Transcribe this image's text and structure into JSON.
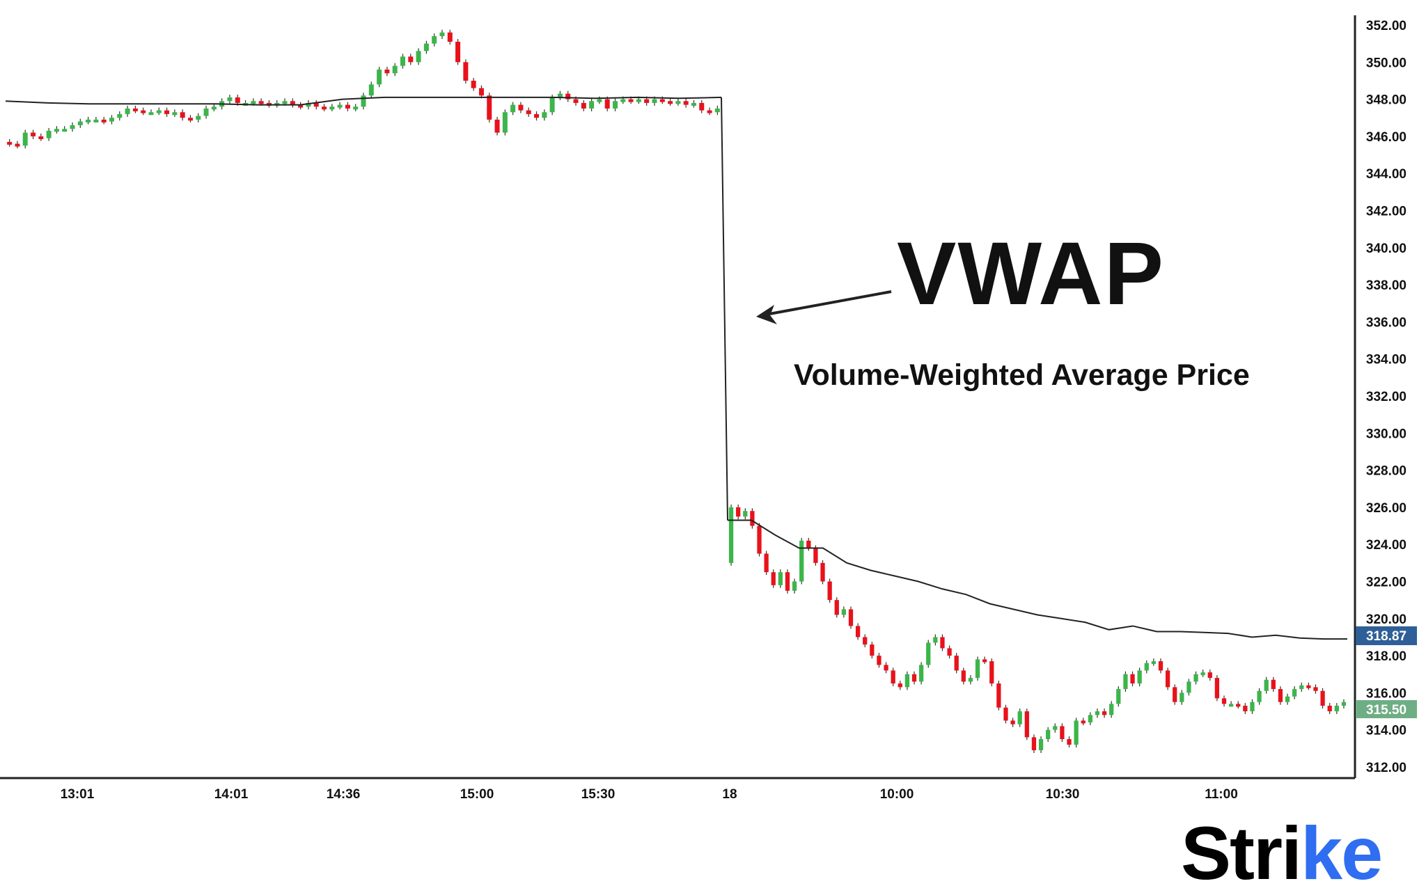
{
  "chart_data": {
    "type": "candlestick",
    "title": "VWAP",
    "subtitle": "Volume-Weighted Average Price",
    "ylim": [
      311,
      353
    ],
    "y_ticks": [
      "352.00",
      "350.00",
      "348.00",
      "346.00",
      "344.00",
      "342.00",
      "340.00",
      "338.00",
      "336.00",
      "334.00",
      "332.00",
      "330.00",
      "328.00",
      "326.00",
      "324.00",
      "322.00",
      "320.00",
      "318.00",
      "316.00",
      "314.00",
      "312.00"
    ],
    "x_ticks": [
      "13:01",
      "14:01",
      "14:36",
      "15:00",
      "15:30",
      "18",
      "10:00",
      "10:30",
      "11:00"
    ],
    "grid": false,
    "colors": {
      "up": "#3cb54a",
      "down": "#e8121b",
      "vwap": "#222222",
      "vwap_badge": "#2f5f98",
      "price_badge": "#6fae84"
    },
    "sessions": [
      {
        "open": 345.7,
        "closes": [
          345.6,
          345.5,
          346.2,
          346.0,
          345.9,
          346.3,
          346.4,
          346.4,
          346.6,
          346.8,
          346.9,
          346.9,
          346.8,
          347.0,
          347.2,
          347.5,
          347.4,
          347.3,
          347.3,
          347.4,
          347.2,
          347.3,
          347.0,
          346.9,
          347.1,
          347.5,
          347.6,
          347.9,
          348.1,
          347.8,
          347.8,
          347.9,
          347.8,
          347.7,
          347.8,
          347.9,
          347.7,
          347.6,
          347.8,
          347.6,
          347.5,
          347.6,
          347.7,
          347.5,
          347.6,
          348.2,
          348.8,
          349.6,
          349.4,
          349.8,
          350.3,
          350.0,
          350.6,
          351.0,
          351.4,
          351.6,
          351.1,
          350.0,
          349.0,
          348.6,
          348.2,
          346.9,
          346.2,
          347.3,
          347.7,
          347.4,
          347.2,
          347.0,
          347.3,
          348.1,
          348.3,
          348.0,
          347.8,
          347.5,
          347.9,
          348.0,
          347.5,
          347.9,
          348.0,
          347.9,
          348.0,
          347.8,
          348.0,
          347.9,
          347.8,
          347.9,
          347.7,
          347.8,
          347.4,
          347.3,
          347.5
        ],
        "vwap": [
          347.9,
          347.8,
          347.75,
          347.75,
          347.75,
          347.75,
          347.7,
          347.7,
          348.0,
          348.1,
          348.1,
          348.1,
          348.1,
          348.1,
          348.05,
          348.1,
          348.05,
          348.1
        ]
      },
      {
        "open": 323.0,
        "closes": [
          326.0,
          325.5,
          325.8,
          325.0,
          323.5,
          322.5,
          321.8,
          322.5,
          321.5,
          322.0,
          324.2,
          323.8,
          323.0,
          322.0,
          321.0,
          320.2,
          320.5,
          319.6,
          319.0,
          318.6,
          318.0,
          317.5,
          317.2,
          316.5,
          316.3,
          317.0,
          316.6,
          317.5,
          318.7,
          319.0,
          318.4,
          318.0,
          317.2,
          316.6,
          316.8,
          317.8,
          317.7,
          316.5,
          315.2,
          314.5,
          314.3,
          315.0,
          313.6,
          312.9,
          313.5,
          314.0,
          314.2,
          313.5,
          313.2,
          314.5,
          314.4,
          314.8,
          315.0,
          314.8,
          315.4,
          316.2,
          317.0,
          316.5,
          317.2,
          317.6,
          317.7,
          317.2,
          316.3,
          315.5,
          316.0,
          316.6,
          317.0,
          317.1,
          316.8,
          315.7,
          315.4,
          315.4,
          315.3,
          315.0,
          315.5,
          316.1,
          316.7,
          316.2,
          315.5,
          315.8,
          316.2,
          316.4,
          316.3,
          316.1,
          315.3,
          315.0,
          315.3,
          315.5
        ],
        "vwap": [
          325.3,
          325.3,
          324.5,
          323.8,
          323.8,
          323.0,
          322.6,
          322.3,
          322.0,
          321.6,
          321.3,
          320.8,
          320.5,
          320.2,
          320.0,
          319.8,
          319.4,
          319.6,
          319.3,
          319.3,
          319.25,
          319.2,
          319.0,
          319.1,
          318.95,
          318.9,
          318.9
        ]
      }
    ],
    "vwap_last": "318.87",
    "price_last": "315.50"
  },
  "annotation": {
    "title": "VWAP",
    "subtitle": "Volume-Weighted Average Price"
  },
  "logo": {
    "text": "Strike",
    "main": "Stri",
    "accent": "ke"
  }
}
